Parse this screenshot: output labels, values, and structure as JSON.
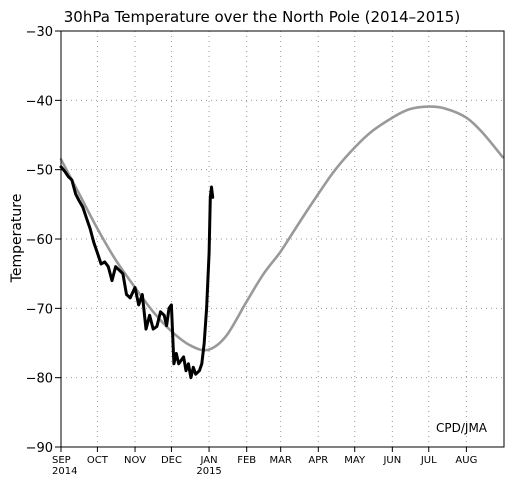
{
  "chart_data": {
    "type": "line",
    "title": "30hPa Temperature over the North Pole (2014–2015)",
    "ylabel": "Temperature",
    "xlabel": "",
    "credit": "CPD/JMA",
    "ylim": [
      -90,
      -30
    ],
    "y_ticks": [
      -90,
      -80,
      -70,
      -60,
      -50,
      -40,
      -30
    ],
    "xlim": [
      "2014-09-01",
      "2015-08-31"
    ],
    "x_ticks": [
      {
        "date": "2014-09-01",
        "label": "SEP",
        "sublabel": "2014"
      },
      {
        "date": "2014-10-01",
        "label": "OCT",
        "sublabel": ""
      },
      {
        "date": "2014-11-01",
        "label": "NOV",
        "sublabel": ""
      },
      {
        "date": "2014-12-01",
        "label": "DEC",
        "sublabel": ""
      },
      {
        "date": "2015-01-01",
        "label": "JAN",
        "sublabel": "2015"
      },
      {
        "date": "2015-02-01",
        "label": "FEB",
        "sublabel": ""
      },
      {
        "date": "2015-03-01",
        "label": "MAR",
        "sublabel": ""
      },
      {
        "date": "2015-04-01",
        "label": "APR",
        "sublabel": ""
      },
      {
        "date": "2015-05-01",
        "label": "MAY",
        "sublabel": ""
      },
      {
        "date": "2015-06-01",
        "label": "JUN",
        "sublabel": ""
      },
      {
        "date": "2015-07-01",
        "label": "JUL",
        "sublabel": ""
      },
      {
        "date": "2015-08-01",
        "label": "AUG",
        "sublabel": ""
      }
    ],
    "grid": true,
    "series": [
      {
        "color": "#999999",
        "points": [
          [
            "2014-09-01",
            -48.5
          ],
          [
            "2014-09-16",
            -53.5
          ],
          [
            "2014-10-01",
            -58.5
          ],
          [
            "2014-10-16",
            -63.0
          ],
          [
            "2014-11-01",
            -67.0
          ],
          [
            "2014-11-16",
            -70.5
          ],
          [
            "2014-12-01",
            -73.3
          ],
          [
            "2014-12-16",
            -75.3
          ],
          [
            "2014-12-31",
            -76.0
          ],
          [
            "2015-01-15",
            -74.0
          ],
          [
            "2015-02-01",
            -69.0
          ],
          [
            "2015-02-15",
            -65.0
          ],
          [
            "2015-03-01",
            -61.8
          ],
          [
            "2015-03-15",
            -58.0
          ],
          [
            "2015-04-01",
            -53.5
          ],
          [
            "2015-04-15",
            -50.0
          ],
          [
            "2015-05-01",
            -46.8
          ],
          [
            "2015-05-15",
            -44.5
          ],
          [
            "2015-06-01",
            -42.5
          ],
          [
            "2015-06-15",
            -41.3
          ],
          [
            "2015-07-01",
            -40.9
          ],
          [
            "2015-07-15",
            -41.2
          ],
          [
            "2015-08-01",
            -42.5
          ],
          [
            "2015-08-15",
            -44.8
          ],
          [
            "2015-08-31",
            -48.2
          ]
        ]
      },
      {
        "color": "#000000",
        "points": [
          [
            "2014-09-01",
            -49.6
          ],
          [
            "2014-09-04",
            -50.2
          ],
          [
            "2014-09-07",
            -51.0
          ],
          [
            "2014-09-10",
            -51.5
          ],
          [
            "2014-09-13",
            -53.5
          ],
          [
            "2014-09-16",
            -54.5
          ],
          [
            "2014-09-19",
            -55.4
          ],
          [
            "2014-09-22",
            -57.0
          ],
          [
            "2014-09-25",
            -58.5
          ],
          [
            "2014-09-28",
            -60.5
          ],
          [
            "2014-10-01",
            -62.0
          ],
          [
            "2014-10-04",
            -63.6
          ],
          [
            "2014-10-07",
            -63.3
          ],
          [
            "2014-10-10",
            -64.0
          ],
          [
            "2014-10-13",
            -66.0
          ],
          [
            "2014-10-16",
            -64.0
          ],
          [
            "2014-10-19",
            -64.5
          ],
          [
            "2014-10-22",
            -65.0
          ],
          [
            "2014-10-25",
            -68.0
          ],
          [
            "2014-10-28",
            -68.5
          ],
          [
            "2014-11-01",
            -67.0
          ],
          [
            "2014-11-04",
            -69.5
          ],
          [
            "2014-11-07",
            -68.0
          ],
          [
            "2014-11-10",
            -73.0
          ],
          [
            "2014-11-13",
            -71.0
          ],
          [
            "2014-11-16",
            -73.0
          ],
          [
            "2014-11-19",
            -72.6
          ],
          [
            "2014-11-22",
            -70.5
          ],
          [
            "2014-11-25",
            -71.0
          ],
          [
            "2014-11-27",
            -72.5
          ],
          [
            "2014-11-29",
            -70.0
          ],
          [
            "2014-12-01",
            -69.5
          ],
          [
            "2014-12-03",
            -78.0
          ],
          [
            "2014-12-05",
            -76.5
          ],
          [
            "2014-12-07",
            -78.0
          ],
          [
            "2014-12-09",
            -77.5
          ],
          [
            "2014-12-11",
            -77.0
          ],
          [
            "2014-12-13",
            -79.0
          ],
          [
            "2014-12-15",
            -78.0
          ],
          [
            "2014-12-17",
            -80.0
          ],
          [
            "2014-12-19",
            -78.5
          ],
          [
            "2014-12-21",
            -79.5
          ],
          [
            "2014-12-24",
            -79.0
          ],
          [
            "2014-12-26",
            -78.0
          ],
          [
            "2014-12-28",
            -75.0
          ],
          [
            "2014-12-30",
            -70.0
          ],
          [
            "2015-01-01",
            -62.0
          ],
          [
            "2015-01-02",
            -54.0
          ],
          [
            "2015-01-03",
            -52.5
          ],
          [
            "2015-01-04",
            -54.0
          ]
        ]
      }
    ]
  }
}
